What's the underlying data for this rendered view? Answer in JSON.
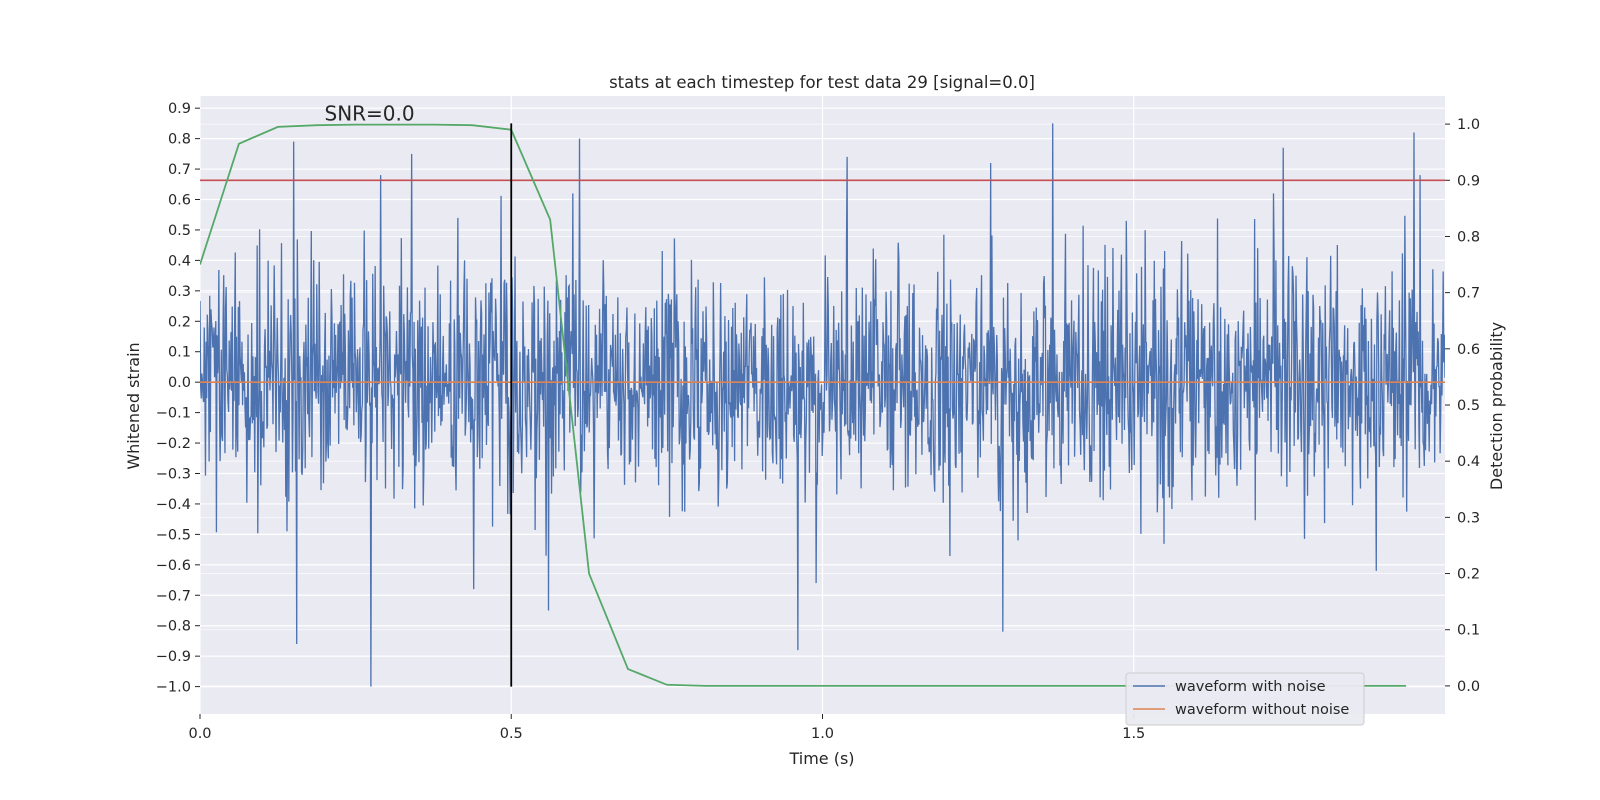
{
  "chart_data": {
    "type": "line",
    "title": "stats at each timestep for test data 29 [signal=0.0]",
    "xlabel": "Time (s)",
    "ylabel_left": "Whitened strain",
    "ylabel_right": "Detection probability",
    "xlim": [
      0.0,
      2.0
    ],
    "ylim_left": [
      -1.09,
      0.94
    ],
    "ylim_right": [
      -0.05,
      1.05
    ],
    "x_ticks": [
      0.0,
      0.5,
      1.0,
      1.5
    ],
    "x_tick_labels": [
      "0.0",
      "0.5",
      "1.0",
      "1.5"
    ],
    "y_left_ticks": [
      0.9,
      0.8,
      0.7,
      0.6,
      0.5,
      0.4,
      0.3,
      0.2,
      0.1,
      0.0,
      -0.1,
      -0.2,
      -0.3,
      -0.4,
      -0.5,
      -0.6,
      -0.7,
      -0.8,
      -0.9,
      -1.0
    ],
    "y_left_tick_labels": [
      "0.9",
      "0.8",
      "0.7",
      "0.6",
      "0.5",
      "0.4",
      "0.3",
      "0.2",
      "0.1",
      "0.0",
      "−0.1",
      "−0.2",
      "−0.3",
      "−0.4",
      "−0.5",
      "−0.6",
      "−0.7",
      "−0.8",
      "−0.9",
      "−1.0"
    ],
    "y_right_ticks": [
      1.0,
      0.9,
      0.8,
      0.7,
      0.6,
      0.5,
      0.4,
      0.3,
      0.2,
      0.1,
      0.0
    ],
    "y_right_tick_labels": [
      "1.0",
      "0.9",
      "0.8",
      "0.7",
      "0.6",
      "0.5",
      "0.4",
      "0.3",
      "0.2",
      "0.1",
      "0.0"
    ],
    "annotation": "SNR=0.0",
    "annotation_at": {
      "x": 0.2,
      "y": 0.86
    },
    "vertical_line_x": 0.5,
    "vertical_line_y_range": [
      -1.0,
      0.85
    ],
    "threshold_probability": 0.9,
    "noise_series": {
      "name": "waveform with noise",
      "x_range": [
        0.0,
        2.0
      ],
      "n_samples": 2048,
      "seed": 29,
      "spikes": [
        {
          "x": 0.15,
          "y": 0.79
        },
        {
          "x": 0.155,
          "y": -0.86
        },
        {
          "x": 0.275,
          "y": -1.0
        },
        {
          "x": 0.29,
          "y": 0.68
        },
        {
          "x": 0.34,
          "y": 0.75
        },
        {
          "x": 0.61,
          "y": 0.8
        },
        {
          "x": 0.56,
          "y": -0.75
        },
        {
          "x": 1.04,
          "y": 0.74
        },
        {
          "x": 0.96,
          "y": -0.88
        },
        {
          "x": 0.99,
          "y": -0.66
        },
        {
          "x": 1.29,
          "y": -0.82
        },
        {
          "x": 1.27,
          "y": 0.72
        },
        {
          "x": 1.37,
          "y": 0.85
        },
        {
          "x": 1.74,
          "y": 0.77
        },
        {
          "x": 1.95,
          "y": 0.82
        },
        {
          "x": 1.96,
          "y": 0.68
        },
        {
          "x": 1.89,
          "y": -0.62
        },
        {
          "x": 0.44,
          "y": -0.68
        }
      ],
      "color": "#4c72b0"
    },
    "clean_series": {
      "name": "waveform without noise",
      "x": [
        0.0,
        2.0
      ],
      "y": [
        0.0,
        0.0
      ],
      "color": "#dd8452"
    },
    "probability_series": {
      "name": "detection probability",
      "x": [
        0.0,
        0.0625,
        0.125,
        0.1875,
        0.25,
        0.3125,
        0.375,
        0.4375,
        0.5,
        0.5625,
        0.625,
        0.6875,
        0.75,
        0.8125,
        0.875,
        0.9375,
        1.0,
        1.0625,
        1.125,
        1.1875,
        1.25,
        1.3125,
        1.375,
        1.4375,
        1.5,
        1.5625,
        1.625,
        1.6875,
        1.75,
        1.8125,
        1.875,
        1.9375
      ],
      "y": [
        0.75,
        0.965,
        0.995,
        0.998,
        0.999,
        0.999,
        0.999,
        0.998,
        0.99,
        0.83,
        0.2,
        0.03,
        0.002,
        0.0,
        0.0,
        0.0,
        0.0,
        0.0,
        0.0,
        0.0,
        0.0,
        0.0,
        0.0,
        0.0,
        0.0,
        0.0,
        0.0,
        0.0,
        0.0,
        0.0,
        0.0,
        0.0
      ],
      "color": "#55a868"
    },
    "threshold_color": "#c44e52",
    "vertical_line_color": "#000000",
    "legend": [
      {
        "label": "waveform with noise",
        "color": "#4c72b0"
      },
      {
        "label": "waveform without noise",
        "color": "#dd8452"
      }
    ],
    "legend_position": "lower-right",
    "grid": true
  }
}
